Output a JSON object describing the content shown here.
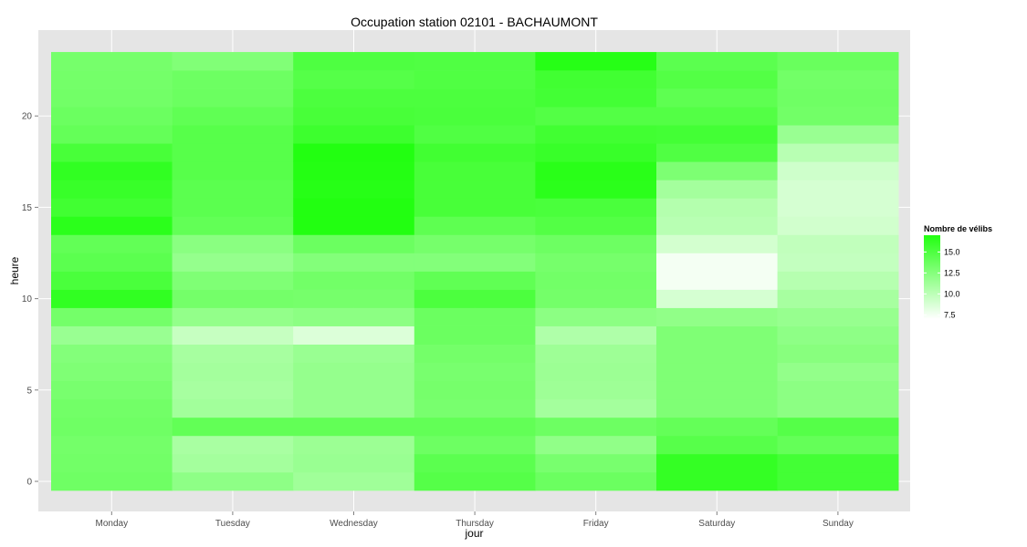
{
  "chart_data": {
    "type": "heatmap",
    "title": "Occupation station 02101 - BACHAUMONT",
    "xlabel": "jour",
    "ylabel": "heure",
    "x": [
      "Monday",
      "Tuesday",
      "Wednesday",
      "Thursday",
      "Friday",
      "Saturday",
      "Sunday"
    ],
    "y": [
      0,
      1,
      2,
      3,
      4,
      5,
      6,
      7,
      8,
      9,
      10,
      11,
      12,
      13,
      14,
      15,
      16,
      17,
      18,
      19,
      20,
      21,
      22,
      23
    ],
    "y_ticks": [
      0,
      5,
      10,
      15,
      20
    ],
    "ylim": [
      -0.5,
      23.5
    ],
    "legend": {
      "title": "Nombre de vélibs",
      "ticks": [
        "15.0",
        "12.5",
        "10.0",
        "7.5"
      ],
      "tick_values": [
        15.0,
        12.5,
        10.0,
        7.5
      ],
      "range": [
        7.0,
        17.0
      ],
      "position": "right",
      "low_color": "#ffffff",
      "high_color": "#22ff11"
    },
    "grid": true,
    "panel_color": "#e5e5e5",
    "values": {
      "Monday": [
        13.5,
        13.4,
        13.3,
        13.5,
        13.4,
        13.1,
        12.8,
        12.6,
        11.6,
        13.3,
        16.3,
        15.2,
        14.4,
        14.1,
        16.6,
        15.6,
        16.0,
        16.3,
        15.3,
        14.0,
        13.7,
        13.4,
        13.3,
        13.2
      ],
      "Tuesday": [
        12.1,
        11.1,
        10.9,
        14.1,
        11.2,
        11.0,
        11.1,
        11.0,
        9.6,
        11.9,
        13.3,
        12.8,
        11.8,
        12.3,
        14.1,
        14.4,
        14.4,
        14.6,
        14.6,
        14.6,
        14.2,
        13.7,
        13.6,
        12.7
      ],
      "Wednesday": [
        11.3,
        11.6,
        11.5,
        14.1,
        11.8,
        11.8,
        11.8,
        11.6,
        8.6,
        12.2,
        13.2,
        13.4,
        12.6,
        13.7,
        17.0,
        17.1,
        16.8,
        16.9,
        17.0,
        15.8,
        15.3,
        15.1,
        14.7,
        15.0
      ],
      "Thursday": [
        14.7,
        14.4,
        13.6,
        14.1,
        13.1,
        13.2,
        13.1,
        13.3,
        13.7,
        13.7,
        15.1,
        14.2,
        12.6,
        13.2,
        14.3,
        15.3,
        15.3,
        15.3,
        15.6,
        14.9,
        15.2,
        15.1,
        14.9,
        14.9
      ],
      "Friday": [
        13.7,
        13.1,
        12.0,
        13.6,
        11.1,
        11.4,
        11.5,
        11.4,
        10.6,
        12.2,
        13.3,
        13.4,
        13.2,
        13.6,
        14.8,
        15.2,
        16.6,
        16.7,
        16.0,
        15.6,
        14.8,
        15.5,
        15.6,
        16.8
      ],
      "Saturday": [
        16.2,
        16.2,
        14.6,
        14.0,
        12.8,
        12.8,
        12.8,
        12.8,
        12.8,
        12.0,
        8.9,
        7.5,
        7.5,
        9.0,
        10.2,
        10.4,
        11.1,
        12.9,
        14.9,
        15.5,
        14.8,
        14.3,
        14.8,
        14.4
      ],
      "Sunday": [
        15.5,
        15.5,
        14.0,
        14.7,
        12.2,
        12.2,
        11.9,
        12.4,
        12.1,
        11.7,
        11.0,
        10.3,
        9.7,
        9.8,
        9.1,
        8.9,
        8.9,
        9.2,
        10.2,
        11.6,
        13.4,
        13.5,
        13.4,
        13.8
      ]
    }
  }
}
